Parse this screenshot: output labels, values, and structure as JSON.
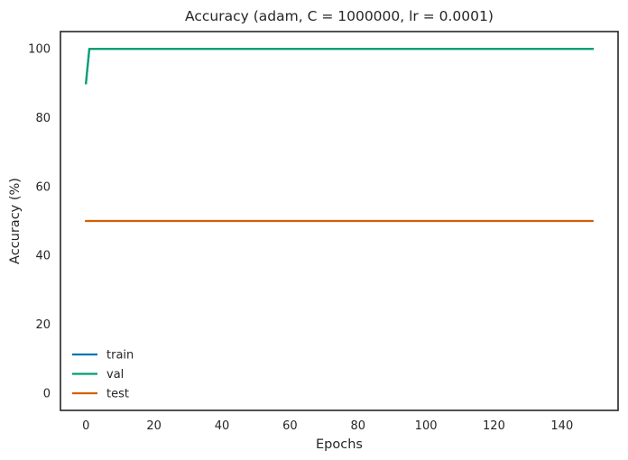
{
  "chart_data": {
    "type": "line",
    "title": "Accuracy (adam, C = 1000000, lr = 0.0001)",
    "xlabel": "Epochs",
    "ylabel": "Accuracy (%)",
    "xlim": [
      -7.5,
      156.5
    ],
    "ylim": [
      -5,
      105
    ],
    "xticks": [
      0,
      20,
      40,
      60,
      80,
      100,
      120,
      140
    ],
    "yticks": [
      0,
      20,
      40,
      60,
      80,
      100
    ],
    "grid": false,
    "legend_position": "bottom-left",
    "series": [
      {
        "name": "train",
        "color": "#0173b2",
        "x": [
          0,
          1,
          149
        ],
        "y": [
          90,
          100,
          100
        ]
      },
      {
        "name": "val",
        "color": "#029e73",
        "x": [
          0,
          1,
          149
        ],
        "y": [
          90,
          100,
          100
        ]
      },
      {
        "name": "test",
        "color": "#d55e00",
        "x": [
          0,
          149
        ],
        "y": [
          50,
          50
        ]
      }
    ]
  }
}
